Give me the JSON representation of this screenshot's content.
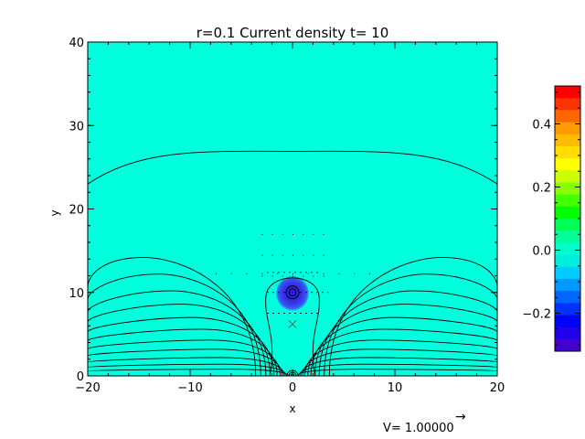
{
  "chart_data": {
    "type": "heatmap",
    "title": "r=0.1 Current density t= 10",
    "xlabel": "x",
    "ylabel": "y",
    "xlim": [
      -20,
      20
    ],
    "ylim": [
      0,
      40
    ],
    "x_ticks": [
      "−20",
      "−10",
      "0",
      "10",
      "20"
    ],
    "y_ticks": [
      "0",
      "10",
      "20",
      "30",
      "40"
    ],
    "x_tick_values": [
      -20,
      -10,
      0,
      10,
      20
    ],
    "y_tick_values": [
      0,
      10,
      20,
      30,
      40
    ],
    "background_value": 0.0,
    "features": {
      "current_blob": {
        "x": 0,
        "y": 10,
        "radius": 1.6,
        "value": -0.3
      },
      "x_point": {
        "x": 0,
        "y": 6.2
      }
    },
    "colorbar": {
      "min": -0.32,
      "max": 0.52,
      "ticks": [
        "0.4",
        "0.2",
        "0.0",
        "−0.2"
      ],
      "tick_values": [
        0.4,
        0.2,
        0.0,
        -0.2
      ],
      "colors": [
        "#ff0000",
        "#ff3300",
        "#ff6600",
        "#ff9900",
        "#ffbb00",
        "#ffdd00",
        "#ffff00",
        "#ccff00",
        "#88ff00",
        "#44ff00",
        "#00ff00",
        "#00ff55",
        "#00ff99",
        "#00ffcc",
        "#00eedd",
        "#00ccff",
        "#0099ff",
        "#0066ff",
        "#0033ff",
        "#0000ff",
        "#2200ee",
        "#4400cc"
      ]
    },
    "vector_legend": {
      "label": "V= 1.00000",
      "arrow": "→"
    },
    "colors": {
      "background": "#00ffdd",
      "contour": "#000000",
      "blob": "#3a2ee8"
    }
  }
}
